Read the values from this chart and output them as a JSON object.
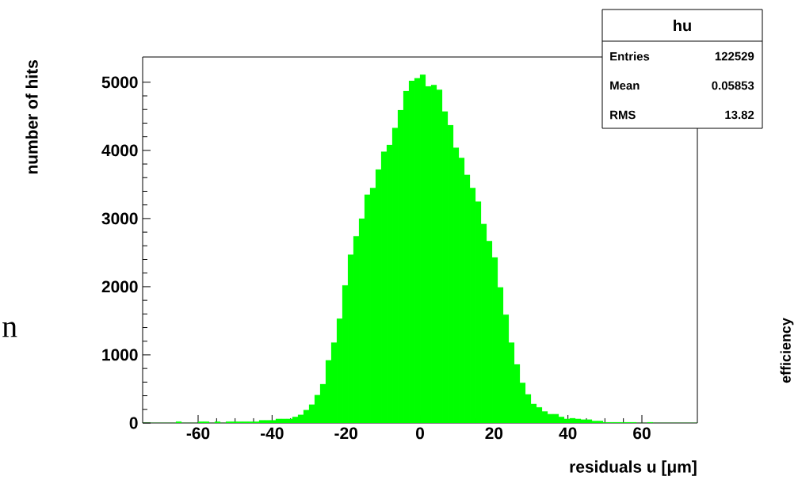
{
  "chart_data": {
    "type": "histogram",
    "xlabel": "residuals u [μm]",
    "ylabel": "number of hits",
    "bins": [
      -75,
      -73.5,
      -72,
      -70.5,
      -69,
      -67.5,
      -66,
      -64.5,
      -63,
      -61.5,
      -60,
      -58.5,
      -57,
      -55.5,
      -54,
      -52.5,
      -51,
      -49.5,
      -48,
      -46.5,
      -45,
      -43.5,
      -42,
      -40.5,
      -39,
      -37.5,
      -36,
      -34.5,
      -33,
      -31.5,
      -30,
      -28.5,
      -27,
      -25.5,
      -24,
      -22.5,
      -21,
      -19.5,
      -18,
      -16.5,
      -15,
      -13.5,
      -12,
      -10.5,
      -9,
      -7.5,
      -6,
      -4.5,
      -3,
      -1.5,
      0,
      1.5,
      3,
      4.5,
      6,
      7.5,
      9,
      10.5,
      12,
      13.5,
      15,
      16.5,
      18,
      19.5,
      21,
      22.5,
      24,
      25.5,
      27,
      28.5,
      30,
      31.5,
      33,
      34.5,
      36,
      37.5,
      39,
      40.5,
      42,
      43.5,
      45,
      46.5,
      48,
      49.5,
      51,
      52.5,
      54,
      55.5,
      57,
      58.5,
      60,
      61.5,
      63,
      64.5,
      66,
      67.5,
      69,
      70.5,
      72,
      73.5,
      75
    ],
    "values": [
      0,
      0,
      0,
      0,
      0,
      0,
      20,
      0,
      0,
      0,
      20,
      20,
      0,
      20,
      0,
      20,
      20,
      20,
      20,
      20,
      20,
      40,
      40,
      40,
      60,
      60,
      60,
      90,
      120,
      190,
      270,
      410,
      570,
      920,
      1180,
      1530,
      2020,
      2470,
      2740,
      3000,
      3350,
      3450,
      3720,
      3980,
      4080,
      4330,
      4590,
      4870,
      5020,
      5060,
      5110,
      4940,
      4960,
      4890,
      4570,
      4370,
      4040,
      3890,
      3640,
      3450,
      3250,
      2920,
      2670,
      2430,
      1990,
      1590,
      1180,
      860,
      590,
      420,
      280,
      230,
      170,
      130,
      130,
      90,
      60,
      70,
      60,
      50,
      50,
      30,
      30,
      10,
      10,
      10,
      10,
      10,
      10,
      0,
      0,
      10,
      0,
      0,
      0,
      0,
      0,
      0,
      0,
      0
    ],
    "color": "#00ff00",
    "xlim": [
      -75,
      75
    ],
    "ylim": [
      0,
      5370
    ],
    "xticks": [
      -60,
      -40,
      -20,
      0,
      20,
      40,
      60
    ],
    "yticks": [
      0,
      1000,
      2000,
      3000,
      4000,
      5000
    ],
    "grid": false,
    "annotations": [
      "hu",
      "Entries",
      "122529",
      "Mean",
      "0.05853",
      "RMS",
      "13.82",
      "n",
      "efficiency"
    ]
  }
}
